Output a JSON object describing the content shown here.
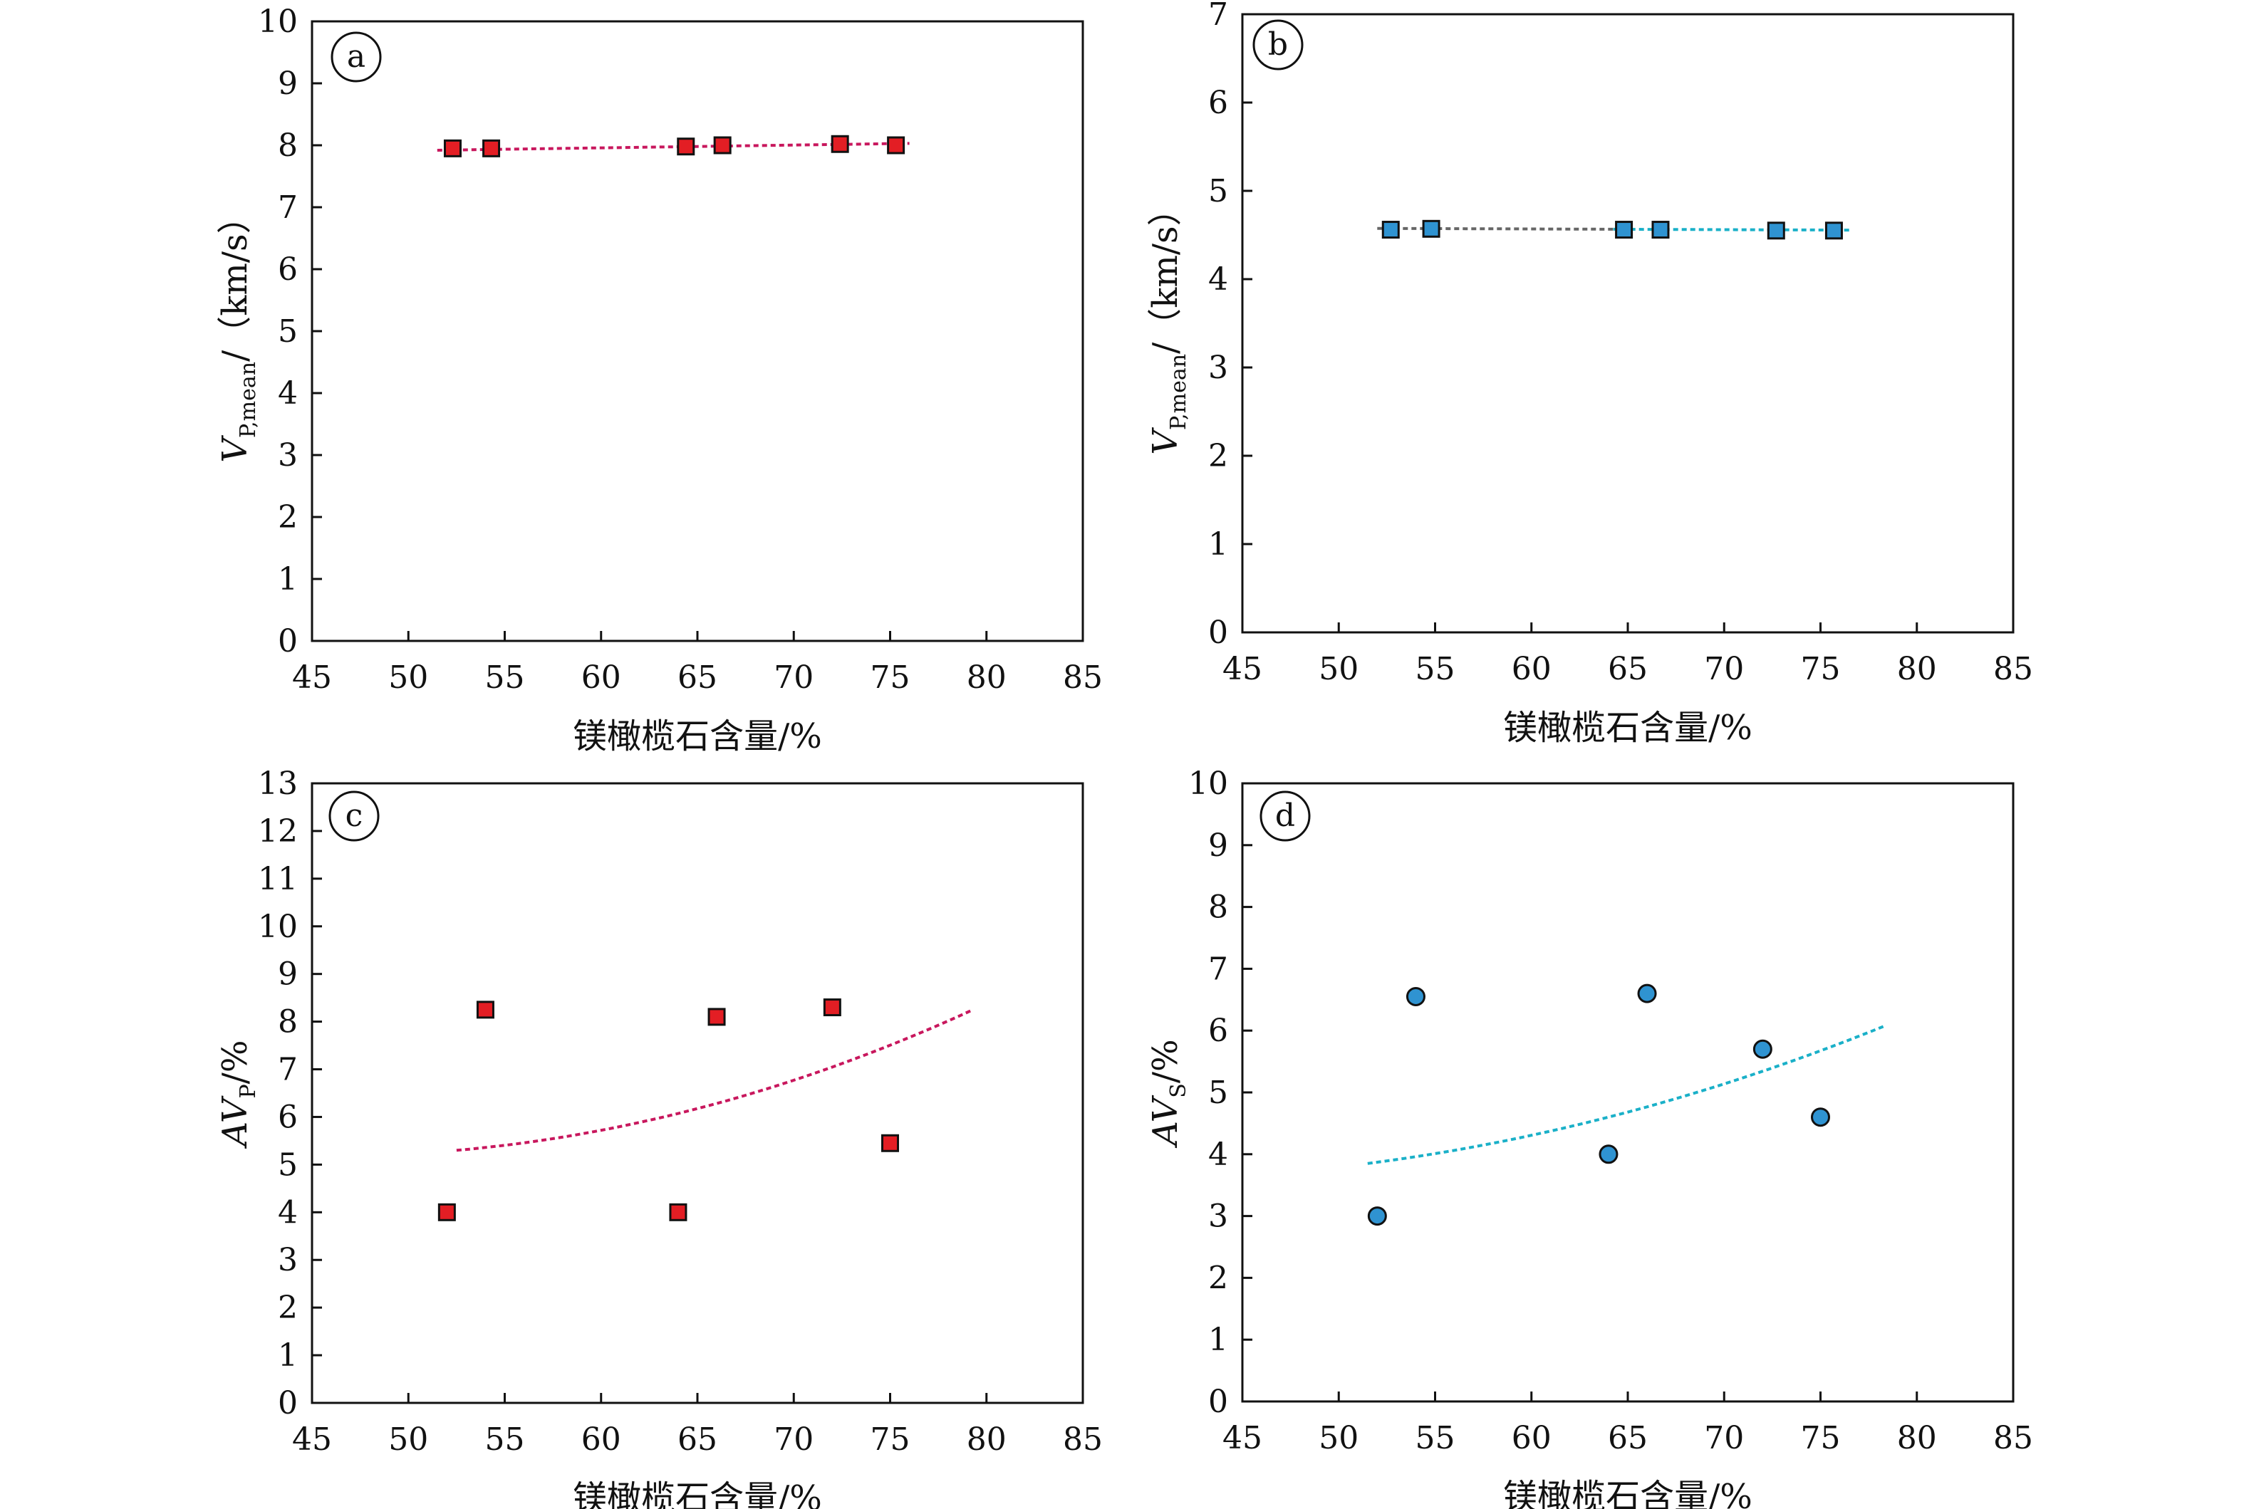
{
  "colors": {
    "red_marker": "#e31e24",
    "blue_marker": "#2f93d1",
    "red_fit": "#c8175d",
    "teal_fit": "#1ab0c8",
    "gray_fit": "#666666",
    "axis": "#111111"
  },
  "chart_data": [
    {
      "type": "scatter",
      "panel_label": "a",
      "xlabel": "镁橄榄石含量/%",
      "ylabel": {
        "main": "V",
        "sub": "P,mean",
        "unit": "/（km/s）"
      },
      "xlim": [
        45,
        85
      ],
      "ylim": [
        0,
        10
      ],
      "xticks": [
        45,
        50,
        55,
        60,
        65,
        70,
        75,
        80,
        85
      ],
      "yticks": [
        0,
        1,
        2,
        3,
        4,
        5,
        6,
        7,
        8,
        9,
        10
      ],
      "marker": "square",
      "marker_color": "red_marker",
      "series": [
        {
          "x": [
            52.3,
            54.3,
            64.4,
            66.3,
            72.4,
            75.3
          ],
          "y": [
            7.95,
            7.95,
            7.98,
            8.0,
            8.02,
            8.0
          ]
        }
      ],
      "fit": {
        "x0": 51.5,
        "x1": 76.0,
        "coef": [
          7.92,
          0.0045,
          0
        ],
        "colors": [
          "red_fit"
        ]
      }
    },
    {
      "type": "scatter",
      "panel_label": "b",
      "xlabel": "镁橄榄石含量/%",
      "ylabel": {
        "main": "V",
        "sub": "P,mean",
        "unit": "/（km/s）"
      },
      "xlim": [
        45,
        85
      ],
      "ylim": [
        0,
        7
      ],
      "xticks": [
        45,
        50,
        55,
        60,
        65,
        70,
        75,
        80,
        85
      ],
      "yticks": [
        0,
        1,
        2,
        3,
        4,
        5,
        6,
        7
      ],
      "marker": "square",
      "marker_color": "blue_marker",
      "series": [
        {
          "x": [
            52.7,
            54.8,
            64.8,
            66.7,
            72.7,
            75.7
          ],
          "y": [
            4.56,
            4.57,
            4.56,
            4.56,
            4.55,
            4.55
          ]
        }
      ],
      "fit": {
        "x0": 52.0,
        "x1": 76.5,
        "coef": [
          4.575,
          -0.0008,
          0
        ],
        "colors": [
          "gray_fit",
          "teal_fit"
        ]
      }
    },
    {
      "type": "scatter",
      "panel_label": "c",
      "xlabel": "镁橄榄石含量/%",
      "ylabel": {
        "main": "AV",
        "sub": "P",
        "unit": "/%"
      },
      "xlim": [
        45,
        85
      ],
      "ylim": [
        0,
        13
      ],
      "xticks": [
        45,
        50,
        55,
        60,
        65,
        70,
        75,
        80,
        85
      ],
      "yticks": [
        0,
        1,
        2,
        3,
        4,
        5,
        6,
        7,
        8,
        9,
        10,
        11,
        12,
        13
      ],
      "marker": "square",
      "marker_color": "red_marker",
      "series": [
        {
          "x": [
            52.0,
            54.0,
            64.0,
            66.0,
            72.0,
            75.0
          ],
          "y": [
            4.0,
            8.25,
            4.0,
            8.1,
            8.3,
            5.45
          ]
        }
      ],
      "fit": {
        "x0": 52.5,
        "x1": 79.3,
        "coef": [
          5.3,
          0.035,
          0.0028
        ],
        "colors": [
          "red_fit"
        ]
      }
    },
    {
      "type": "scatter",
      "panel_label": "d",
      "xlabel": "镁橄榄石含量/%",
      "ylabel": {
        "main": "AV",
        "sub": "S",
        "unit": "/%"
      },
      "xlim": [
        45,
        85
      ],
      "ylim": [
        0,
        10
      ],
      "xticks": [
        45,
        50,
        55,
        60,
        65,
        70,
        75,
        80,
        85
      ],
      "yticks": [
        0,
        1,
        2,
        3,
        4,
        5,
        6,
        7,
        8,
        9,
        10
      ],
      "marker": "circle",
      "marker_color": "blue_marker",
      "series": [
        {
          "x": [
            52.0,
            54.0,
            64.0,
            66.0,
            72.0,
            75.0
          ],
          "y": [
            3.0,
            6.55,
            4.0,
            6.6,
            5.7,
            4.6
          ]
        }
      ],
      "fit": {
        "x0": 51.5,
        "x1": 78.3,
        "coef": [
          3.85,
          0.04,
          0.0016
        ],
        "colors": [
          "teal_fit"
        ]
      }
    }
  ]
}
